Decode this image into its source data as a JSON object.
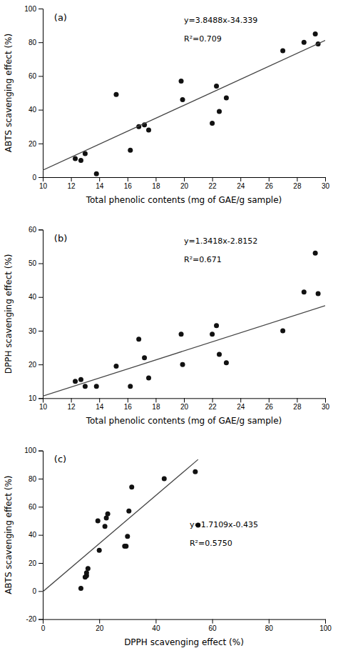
{
  "chart_data": [
    {
      "type": "scatter",
      "xlabel": "Total phenolic contents (mg of GAE/g sample)",
      "ylabel": "ABTS scavenging effect (%)",
      "annotations": [
        "(a)",
        "y=3.8488x-34.339",
        "R²=0.709"
      ],
      "series": [
        {
          "type": "scatter",
          "color": "#111111",
          "x": [
            12.3,
            12.7,
            13.0,
            13.8,
            15.2,
            16.2,
            16.8,
            17.2,
            17.5,
            19.8,
            19.9,
            22.0,
            22.3,
            22.5,
            23.0,
            27.0,
            28.5,
            29.3,
            29.5
          ],
          "values": [
            11.0,
            10.0,
            14.0,
            2.0,
            49.0,
            16.0,
            30.0,
            31.0,
            28.0,
            57.0,
            46.0,
            32.0,
            54.0,
            39.0,
            47.0,
            75.0,
            80.0,
            85.0,
            79.0
          ]
        },
        {
          "type": "line",
          "color": "#444444",
          "x": [
            10,
            30
          ],
          "values": [
            4.149,
            81.125
          ]
        }
      ],
      "xlim": [
        10,
        30
      ],
      "ylim": [
        0,
        100
      ],
      "xticks": [
        10,
        12,
        14,
        16,
        18,
        20,
        22,
        24,
        26,
        28,
        30
      ],
      "yticks": [
        0,
        20,
        40,
        60,
        80,
        100
      ]
    },
    {
      "type": "scatter",
      "xlabel": "Total phenolic contents (mg of GAE/g sample)",
      "ylabel": "DPPH scavenging effect (%)",
      "annotations": [
        "(b)",
        "y=1.3418x-2.8152",
        "R²=0.671"
      ],
      "series": [
        {
          "type": "scatter",
          "color": "#111111",
          "x": [
            12.3,
            12.7,
            13.0,
            13.8,
            15.2,
            16.2,
            16.8,
            17.2,
            17.5,
            19.8,
            19.9,
            22.0,
            22.3,
            22.5,
            23.0,
            27.0,
            28.5,
            29.3,
            29.5
          ],
          "values": [
            15.0,
            15.5,
            13.5,
            13.5,
            19.5,
            13.5,
            27.5,
            22.0,
            16.0,
            29.0,
            20.0,
            29.0,
            31.5,
            23.0,
            20.5,
            30.0,
            41.5,
            53.0,
            41.0
          ]
        },
        {
          "type": "line",
          "color": "#444444",
          "x": [
            10,
            30
          ],
          "values": [
            10.6028,
            37.4388
          ]
        }
      ],
      "xlim": [
        10,
        30
      ],
      "ylim": [
        10,
        60
      ],
      "xticks": [
        10,
        12,
        14,
        16,
        18,
        20,
        22,
        24,
        26,
        28,
        30
      ],
      "yticks": [
        10,
        20,
        30,
        40,
        50,
        60
      ]
    },
    {
      "type": "scatter",
      "xlabel": "DPPH scavenging effect (%)",
      "ylabel": "ABTS scavenging effect (%)",
      "annotations": [
        "(c)",
        "y=1.7109x-0.435",
        "R²=0.5750"
      ],
      "series": [
        {
          "type": "scatter",
          "color": "#111111",
          "x": [
            13.5,
            15.0,
            15.5,
            15.5,
            16.0,
            19.5,
            20.0,
            22.0,
            22.5,
            23.0,
            29.0,
            29.5,
            30.0,
            30.5,
            31.5,
            43.0,
            54.0,
            55.0
          ],
          "values": [
            2.0,
            10.0,
            11.0,
            13.0,
            16.0,
            50.0,
            29.0,
            46.0,
            52.0,
            55.0,
            32.0,
            32.0,
            39.0,
            57.0,
            74.0,
            80.0,
            85.0,
            47.0
          ]
        },
        {
          "type": "line",
          "color": "#444444",
          "x": [
            0,
            55
          ],
          "values": [
            -0.435,
            93.6645
          ]
        }
      ],
      "xlim": [
        0,
        100
      ],
      "ylim": [
        -20,
        100
      ],
      "xticks": [
        0,
        20,
        40,
        60,
        80,
        100
      ],
      "yticks": [
        -20,
        0,
        20,
        40,
        60,
        80,
        100
      ]
    }
  ]
}
